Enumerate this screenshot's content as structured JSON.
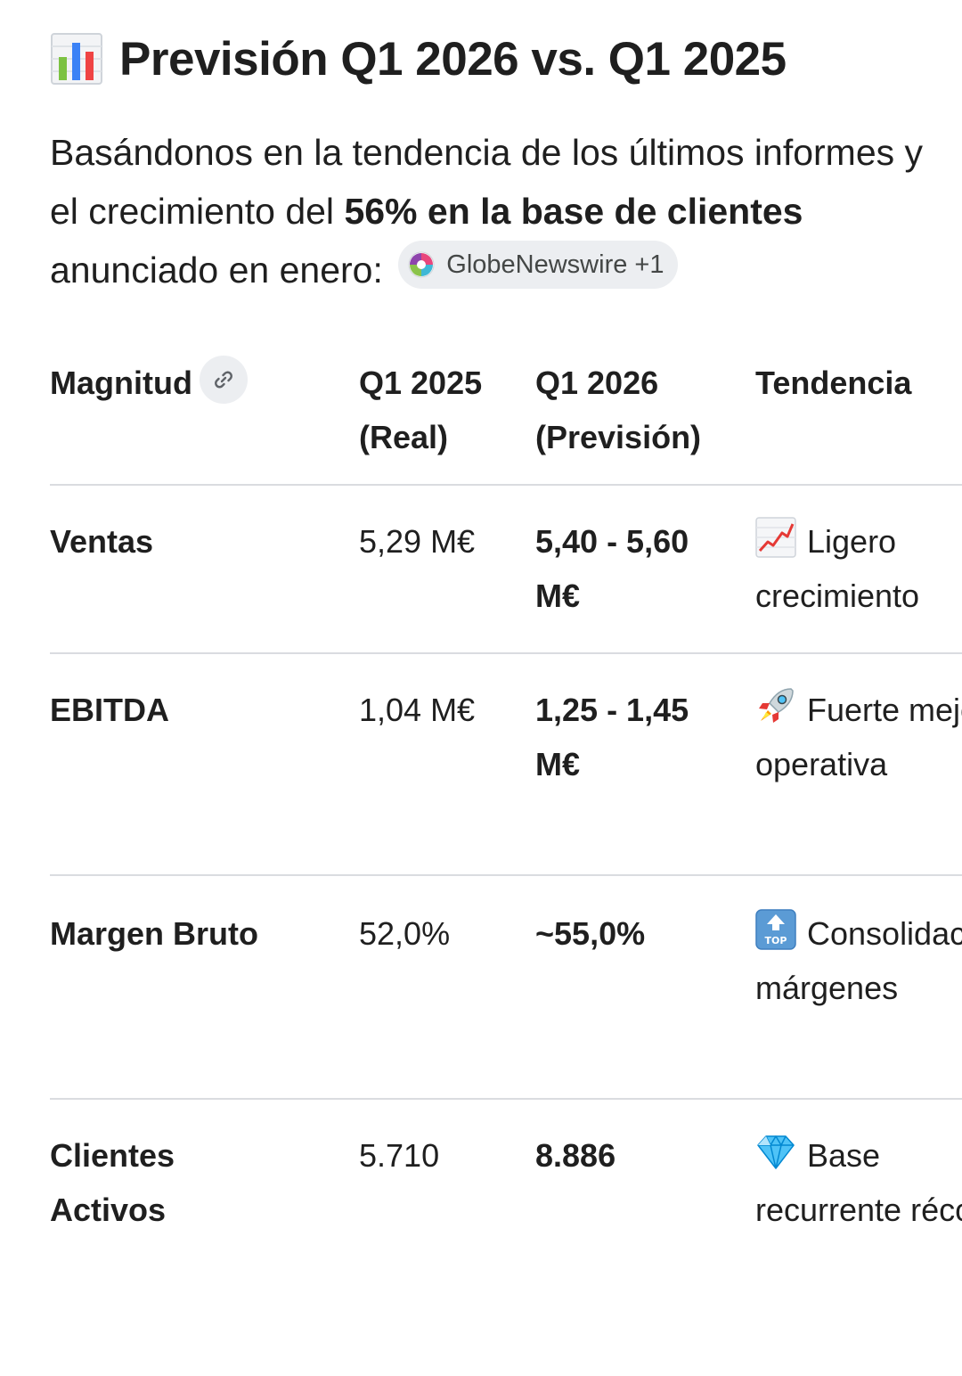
{
  "header": {
    "chart_emoji": "bar-chart-emoji",
    "title": "Previsión Q1 2026 vs. Q1 2025"
  },
  "intro": {
    "text_before": "Basándonos en la tendencia de los últimos informes y el crecimiento del",
    "text_bold": "56% en la base de clientes",
    "text_after": "anunciado en enero:",
    "source_chip": "GlobeNewswire +1"
  },
  "table": {
    "headers": {
      "magnitude": "Magnitud",
      "q1_2025_line1": "Q1 2025",
      "q1_2025_line2": "(Real)",
      "q1_2026_line1": "Q1 2026",
      "q1_2026_line2": "(Previsión)",
      "trend": "Tendencia"
    },
    "rows": [
      {
        "magnitude": "Ventas",
        "q1_2025": "5,29 M€",
        "q1_2026": "5,40 - 5,60 M€",
        "trend_icon": "chart-increasing-emoji",
        "trend": "Ligero crecimiento"
      },
      {
        "magnitude": "EBITDA",
        "q1_2025": "1,04 M€",
        "q1_2026": "1,25 - 1,45 M€",
        "trend_icon": "rocket-emoji",
        "trend": "Fuerte mejora operativa"
      },
      {
        "magnitude": "Margen Bruto",
        "q1_2025": "52,0%",
        "q1_2026": "~55,0%",
        "trend_icon": "top-arrow-emoji",
        "trend": "Consolidación márgenes"
      },
      {
        "magnitude": "Clientes Activos",
        "q1_2025": "5.710",
        "q1_2026": "8.886",
        "trend_icon": "gem-emoji",
        "trend": "Base recurrente récord"
      }
    ]
  }
}
